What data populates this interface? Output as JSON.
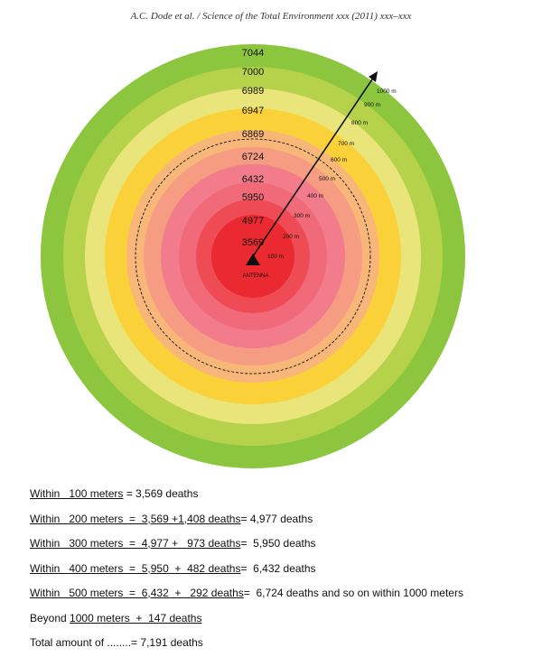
{
  "header": {
    "citation": "A.C. Dode et al. / Science of the Total Environment xxx (2011) xxx–xxx"
  },
  "diagram": {
    "ring_colors": [
      "#8cc63f",
      "#b5d24a",
      "#e9e57a",
      "#fbd13a",
      "#f8b778",
      "#f59c83",
      "#f27b8c",
      "#f06a7a",
      "#ee4b55",
      "#ea2a30"
    ],
    "ring_labels": [
      "7044",
      "7000",
      "6989",
      "6947",
      "6869",
      "6724",
      "6432",
      "5950",
      "4977",
      "3569"
    ],
    "distance_labels": [
      "100 m",
      "200 m",
      "300 m",
      "400 m",
      "500 m",
      "600 m",
      "700 m",
      "800 m",
      "900 m",
      "1000 m"
    ],
    "antenna_label": "ANTENNA"
  },
  "stats": [
    {
      "u1": "Within   100 meters",
      "t1": " = 3,569 deaths",
      "u2": "",
      "t2": ""
    },
    {
      "u1": "Within   200 meters  =  3,569 +1,408 deaths",
      "t1": "= 4,977 deaths",
      "u2": "",
      "t2": ""
    },
    {
      "u1": "Within   300 meters  =  4,977 +   973 deaths",
      "t1": "=  5,950 deaths",
      "u2": "",
      "t2": ""
    },
    {
      "u1": "Within   400 meters  =  5,950  +  482 deaths",
      "t1": "=  6,432 deaths",
      "u2": "",
      "t2": ""
    },
    {
      "u1": "Within   500 meters  =  6,432  +   292 deaths",
      "t1": "=  6,724 deaths and so on within 1000 meters",
      "u2": "",
      "t2": ""
    },
    {
      "u1": "",
      "t1": "Beyond ",
      "u2": "1000 meters  +  147 deaths",
      "t2": ""
    },
    {
      "u1": "",
      "t1": "Total amount of ........= 7,191 deaths",
      "u2": "",
      "t2": ""
    }
  ]
}
